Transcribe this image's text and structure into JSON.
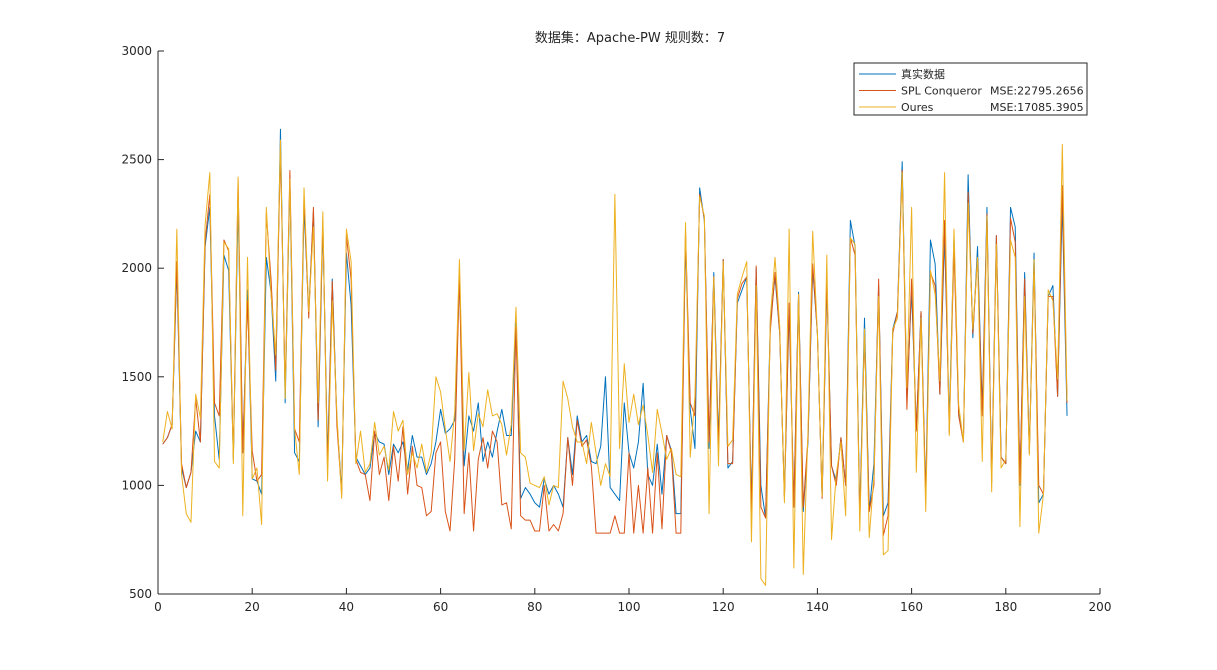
{
  "chart_data": {
    "type": "line",
    "title": "数据集：Apache-PW  规则数：7",
    "xlabel": "",
    "ylabel": "",
    "xlim": [
      0,
      200
    ],
    "ylim": [
      500,
      3000
    ],
    "xticks": [
      0,
      20,
      40,
      60,
      80,
      100,
      120,
      140,
      160,
      180,
      200
    ],
    "yticks": [
      500,
      1000,
      1500,
      2000,
      2500,
      3000
    ],
    "xtick_labels": [
      "0",
      "20",
      "40",
      "60",
      "80",
      "100",
      "120",
      "140",
      "160",
      "180",
      "200"
    ],
    "ytick_labels": [
      "500",
      "1000",
      "1500",
      "2000",
      "2500",
      "3000"
    ],
    "grid": false,
    "legend": "top-right",
    "legend_entries": [
      {
        "label": "真实数据",
        "mse": ""
      },
      {
        "label": "SPL Conqueror",
        "mse": "MSE:22795.2656"
      },
      {
        "label": "Oures",
        "mse": "MSE:17085.3905"
      }
    ],
    "series": [
      {
        "name": "真实数据",
        "color": "#0072BD",
        "values": [
          1190,
          1220,
          1280,
          2000,
          1080,
          990,
          1060,
          1250,
          1200,
          2100,
          2280,
          1320,
          1120,
          2060,
          1990,
          1120,
          2300,
          1150,
          1900,
          1030,
          1020,
          960,
          2050,
          1890,
          1480,
          2640,
          1380,
          2400,
          1150,
          1110,
          2280,
          1800,
          2260,
          1270,
          2200,
          1120,
          1950,
          1290,
          980,
          2070,
          1830,
          1130,
          1090,
          1050,
          1080,
          1240,
          1200,
          1190,
          1050,
          1190,
          1150,
          1200,
          1070,
          1230,
          1130,
          1130,
          1050,
          1100,
          1200,
          1350,
          1240,
          1260,
          1300,
          1950,
          1090,
          1320,
          1250,
          1380,
          1110,
          1200,
          1130,
          1250,
          1350,
          1230,
          1230,
          1760,
          940,
          990,
          960,
          920,
          900,
          1030,
          960,
          1000,
          960,
          900,
          1220,
          1050,
          1320,
          1200,
          1230,
          1110,
          1100,
          1180,
          1500,
          990,
          960,
          930,
          1380,
          1150,
          1080,
          1200,
          1470,
          1050,
          1000,
          1190,
          960,
          1230,
          1160,
          870,
          870,
          2120,
          1350,
          1170,
          2370,
          2220,
          1170,
          1980,
          1200,
          2040,
          1080,
          1110,
          1840,
          1900,
          1960,
          900,
          2000,
          1000,
          850,
          1750,
          1960,
          1700,
          950,
          1820,
          900,
          1890,
          880,
          1200,
          2000,
          1700,
          950,
          1920,
          1090,
          1020,
          1220,
          1000,
          2220,
          2100,
          860,
          1770,
          880,
          1100,
          1920,
          860,
          920,
          1720,
          1800,
          2490,
          1400,
          1900,
          1260,
          1800,
          950,
          2130,
          2020,
          1420,
          2150,
          1300,
          2140,
          1330,
          1200,
          2430,
          1680,
          2100,
          1350,
          2280,
          1020,
          2150,
          1130,
          1100,
          2280,
          2190,
          1000,
          1980,
          1160,
          2070,
          920,
          960,
          1870,
          1920,
          1410,
          2300,
          1320
        ]
      },
      {
        "name": "SPL Conqueror",
        "color": "#D95319",
        "values": [
          1190,
          1220,
          1280,
          2030,
          1100,
          990,
          1060,
          1400,
          1200,
          2120,
          2340,
          1380,
          1320,
          2130,
          2080,
          1130,
          2410,
          1150,
          1850,
          1160,
          1020,
          1050,
          2250,
          1950,
          1530,
          2550,
          1440,
          2450,
          1260,
          1200,
          2330,
          1770,
          2280,
          1300,
          2220,
          1080,
          1940,
          1270,
          960,
          2150,
          1950,
          1120,
          1060,
          1050,
          930,
          1250,
          1050,
          1130,
          930,
          1180,
          1020,
          1270,
          960,
          1180,
          1000,
          990,
          860,
          880,
          1150,
          1200,
          880,
          790,
          1120,
          1980,
          870,
          1150,
          790,
          1120,
          1220,
          1080,
          1250,
          1200,
          910,
          920,
          800,
          1730,
          860,
          840,
          840,
          790,
          790,
          1000,
          790,
          820,
          790,
          870,
          1220,
          1000,
          1300,
          1180,
          1210,
          1090,
          780,
          780,
          780,
          780,
          860,
          780,
          780,
          1150,
          780,
          1000,
          780,
          1080,
          780,
          1150,
          800,
          1230,
          1150,
          780,
          780,
          2170,
          1380,
          1320,
          2340,
          2230,
          1200,
          1960,
          1170,
          2040,
          1100,
          1100,
          1860,
          1930,
          1960,
          880,
          2010,
          900,
          850,
          1710,
          1980,
          1700,
          940,
          1840,
          900,
          1880,
          900,
          1220,
          2020,
          1700,
          940,
          1940,
          1090,
          1000,
          1220,
          1000,
          2140,
          2060,
          840,
          1700,
          880,
          1000,
          1950,
          770,
          860,
          1700,
          1800,
          2450,
          1350,
          1950,
          1250,
          1800,
          950,
          1980,
          1920,
          1420,
          2220,
          1240,
          2090,
          1320,
          1200,
          2350,
          1700,
          2050,
          1320,
          2250,
          1020,
          2150,
          1130,
          1100,
          2230,
          2120,
          1010,
          1950,
          1150,
          2020,
          1000,
          960,
          1870,
          1870,
          1410,
          2380,
          1380
        ]
      },
      {
        "name": "Oures",
        "color": "#EDB120",
        "values": [
          1200,
          1340,
          1260,
          2180,
          1050,
          870,
          830,
          1420,
          1310,
          2200,
          2440,
          1110,
          1080,
          2120,
          2090,
          1100,
          2420,
          860,
          2050,
          1030,
          1080,
          820,
          2280,
          1880,
          1600,
          2590,
          1400,
          2410,
          1260,
          1050,
          2370,
          1800,
          2190,
          1380,
          2260,
          1020,
          1850,
          1320,
          940,
          2180,
          2030,
          1100,
          1250,
          1060,
          1100,
          1290,
          1140,
          1180,
          1070,
          1340,
          1250,
          1300,
          1050,
          1150,
          1080,
          1190,
          1060,
          1150,
          1500,
          1430,
          1260,
          1110,
          1340,
          2040,
          1160,
          1520,
          1160,
          1330,
          1270,
          1440,
          1320,
          1330,
          1280,
          1140,
          1280,
          1820,
          1150,
          1130,
          1010,
          1000,
          990,
          1040,
          910,
          1000,
          990,
          1480,
          1400,
          1270,
          1200,
          1200,
          1100,
          1290,
          1150,
          1000,
          1100,
          1040,
          2340,
          1170,
          1560,
          1290,
          1420,
          1280,
          1370,
          1230,
          1060,
          1350,
          1240,
          1120,
          1170,
          1050,
          1040,
          2210,
          1130,
          1410,
          2330,
          2240,
          870,
          1960,
          1090,
          2030,
          1180,
          1210,
          1880,
          1960,
          2030,
          740,
          1920,
          570,
          540,
          1770,
          2050,
          1730,
          920,
          2180,
          620,
          1880,
          590,
          1250,
          2170,
          1700,
          950,
          2060,
          750,
          1050,
          1200,
          860,
          2140,
          2110,
          790,
          1720,
          760,
          1040,
          1870,
          680,
          700,
          1720,
          1770,
          2440,
          1450,
          2280,
          1060,
          1770,
          880,
          1990,
          1880,
          1480,
          2440,
          1230,
          2180,
          1370,
          1200,
          2300,
          1720,
          2050,
          1110,
          2240,
          970,
          2110,
          1080,
          1120,
          2130,
          2050,
          810,
          1870,
          1140,
          2040,
          780,
          960,
          1900,
          1850,
          1490,
          2570,
          1390
        ]
      }
    ]
  }
}
